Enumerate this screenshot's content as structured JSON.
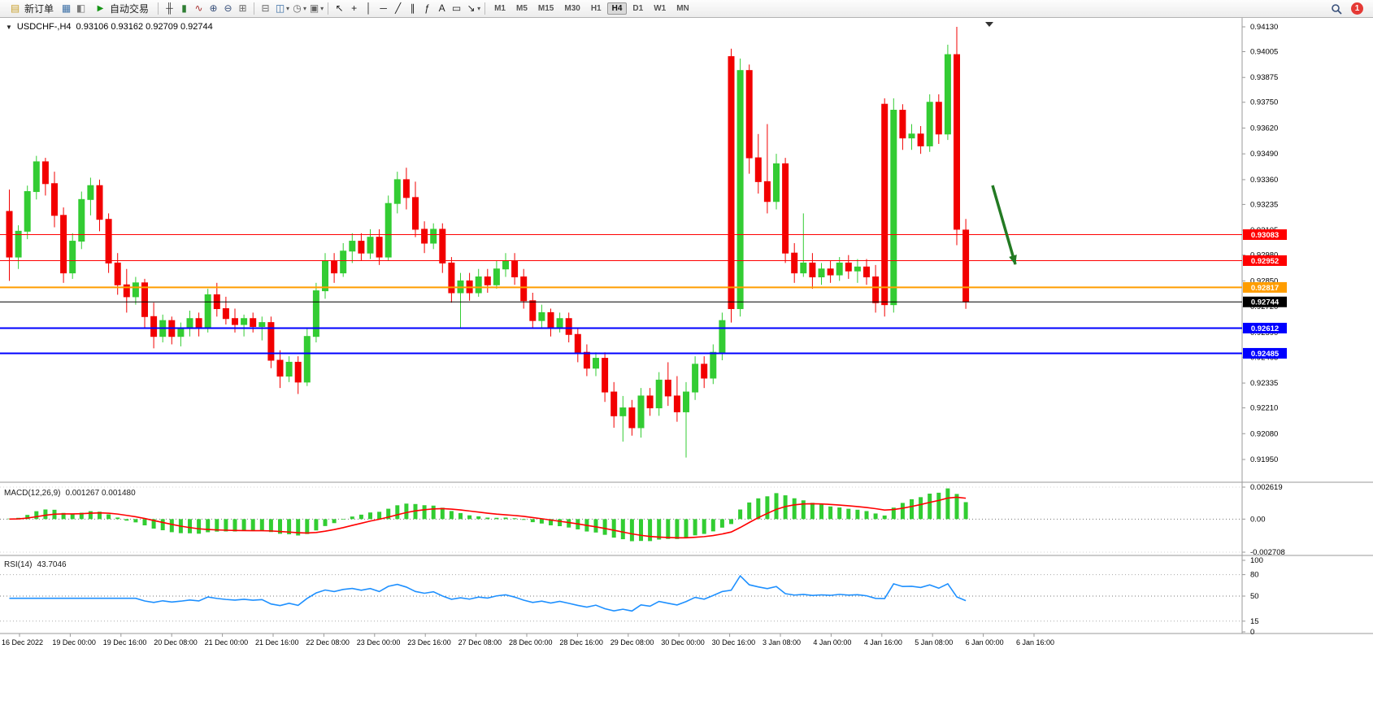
{
  "toolbar": {
    "new_order_label": "新订单",
    "auto_trading_label": "自动交易",
    "timeframes": [
      "M1",
      "M5",
      "M15",
      "M30",
      "H1",
      "H4",
      "D1",
      "W1",
      "MN"
    ],
    "active_timeframe": "H4",
    "notification_badge": "1",
    "icons": {
      "new_order": "▤",
      "charts": "▦",
      "market_watch": "◧",
      "auto_trading": "▶",
      "bar_chart": "╫",
      "candlestick": "▮",
      "line_chart": "∿",
      "zoom_in": "⊕",
      "zoom_out": "⊖",
      "tile_windows": "⊞",
      "arrange_windows": "⊟",
      "new_chart": "◫",
      "profiles": "◷",
      "chart_props": "▣",
      "cursor": "↖",
      "crosshair": "+",
      "vertical_line": "│",
      "horizontal_line": "─",
      "trendline": "╱",
      "channel": "∥",
      "fibonacci": "ƒ",
      "text": "A",
      "label": "▭",
      "arrows": "↘",
      "dropdown": "▾",
      "collapse": "▼"
    }
  },
  "chart_data": {
    "type": "candlestick",
    "title_symbol": "USDCHF-,H4",
    "title_ohlc": "0.93106 0.93162 0.92709 0.92744",
    "timeframe": "H4",
    "colors": {
      "up": "#33cc33",
      "down": "#f20000",
      "arrow": "#237a23",
      "macd_bar": "#32cd32",
      "macd_signal": "#ff0000",
      "rsi_line": "#1e90ff",
      "level_red": "#ff0000",
      "level_orange": "#ff9d00",
      "level_blue": "#0000ff",
      "level_black": "#000000"
    },
    "price_axis": [
      "0.94130",
      "0.94005",
      "0.93875",
      "0.93750",
      "0.93620",
      "0.93490",
      "0.93360",
      "0.93235",
      "0.93105",
      "0.92980",
      "0.92850",
      "0.92720",
      "0.92590",
      "0.92465",
      "0.92335",
      "0.92210",
      "0.92080",
      "0.91950"
    ],
    "levels": [
      {
        "price": 0.93083,
        "label": "0.93083",
        "color": "#ff0000",
        "width": 1
      },
      {
        "price": 0.92952,
        "label": "0.92952",
        "color": "#ff0000",
        "width": 1
      },
      {
        "price": 0.92817,
        "label": "0.92817",
        "color": "#ff9d00",
        "width": 2
      },
      {
        "price": 0.92744,
        "label": "0.92744",
        "color": "#000000",
        "width": 1
      },
      {
        "price": 0.92612,
        "label": "0.92612",
        "color": "#0000ff",
        "width": 2
      },
      {
        "price": 0.92485,
        "label": "0.92485",
        "color": "#0000ff",
        "width": 2
      }
    ],
    "candles": [
      [
        0.932,
        0.9331,
        0.9285,
        0.9297
      ],
      [
        0.9297,
        0.9313,
        0.9291,
        0.931
      ],
      [
        0.931,
        0.9333,
        0.9306,
        0.933
      ],
      [
        0.933,
        0.9348,
        0.9326,
        0.9345
      ],
      [
        0.9345,
        0.9347,
        0.9328,
        0.9334
      ],
      [
        0.9334,
        0.934,
        0.9312,
        0.9318
      ],
      [
        0.9318,
        0.9322,
        0.9284,
        0.9289
      ],
      [
        0.9289,
        0.9309,
        0.9286,
        0.9305
      ],
      [
        0.9305,
        0.933,
        0.9301,
        0.9326
      ],
      [
        0.9326,
        0.9337,
        0.9318,
        0.9333
      ],
      [
        0.9333,
        0.9336,
        0.931,
        0.9316
      ],
      [
        0.9316,
        0.9319,
        0.9289,
        0.9294
      ],
      [
        0.9294,
        0.9299,
        0.9278,
        0.9283
      ],
      [
        0.9283,
        0.9291,
        0.9269,
        0.9277
      ],
      [
        0.9277,
        0.9287,
        0.9273,
        0.9284
      ],
      [
        0.9284,
        0.9286,
        0.9261,
        0.9267
      ],
      [
        0.9267,
        0.9274,
        0.9251,
        0.9257
      ],
      [
        0.9257,
        0.9268,
        0.9254,
        0.9265
      ],
      [
        0.9265,
        0.9267,
        0.9253,
        0.9257
      ],
      [
        0.9257,
        0.9264,
        0.9252,
        0.9261
      ],
      [
        0.9261,
        0.927,
        0.9257,
        0.9266
      ],
      [
        0.9266,
        0.9269,
        0.9257,
        0.9261
      ],
      [
        0.9261,
        0.9281,
        0.9259,
        0.9278
      ],
      [
        0.9278,
        0.9284,
        0.9267,
        0.9271
      ],
      [
        0.9271,
        0.9277,
        0.9263,
        0.9266
      ],
      [
        0.9266,
        0.9271,
        0.9259,
        0.9263
      ],
      [
        0.9263,
        0.9268,
        0.9257,
        0.9266
      ],
      [
        0.9266,
        0.9269,
        0.9259,
        0.9262
      ],
      [
        0.9262,
        0.9267,
        0.9255,
        0.9264
      ],
      [
        0.9264,
        0.9267,
        0.9241,
        0.9245
      ],
      [
        0.9245,
        0.925,
        0.9231,
        0.9237
      ],
      [
        0.9237,
        0.9247,
        0.9234,
        0.9244
      ],
      [
        0.9244,
        0.9247,
        0.9228,
        0.9234
      ],
      [
        0.9234,
        0.9261,
        0.9232,
        0.9257
      ],
      [
        0.9257,
        0.9284,
        0.9254,
        0.928
      ],
      [
        0.928,
        0.9299,
        0.9276,
        0.9295
      ],
      [
        0.9295,
        0.9299,
        0.9284,
        0.9289
      ],
      [
        0.9289,
        0.9304,
        0.9287,
        0.93
      ],
      [
        0.93,
        0.9309,
        0.9294,
        0.9305
      ],
      [
        0.9305,
        0.9309,
        0.9295,
        0.9299
      ],
      [
        0.9299,
        0.9311,
        0.9296,
        0.9307
      ],
      [
        0.9307,
        0.9311,
        0.9293,
        0.9297
      ],
      [
        0.9297,
        0.9328,
        0.9295,
        0.9324
      ],
      [
        0.9324,
        0.934,
        0.9319,
        0.9336
      ],
      [
        0.9336,
        0.9342,
        0.9321,
        0.9327
      ],
      [
        0.9327,
        0.9335,
        0.9307,
        0.9311
      ],
      [
        0.9311,
        0.9315,
        0.9299,
        0.9304
      ],
      [
        0.9304,
        0.9314,
        0.9301,
        0.9311
      ],
      [
        0.9311,
        0.9314,
        0.9289,
        0.9294
      ],
      [
        0.9294,
        0.9297,
        0.9274,
        0.9279
      ],
      [
        0.9279,
        0.9289,
        0.9261,
        0.9285
      ],
      [
        0.9285,
        0.9289,
        0.9275,
        0.9279
      ],
      [
        0.9279,
        0.9291,
        0.9277,
        0.9287
      ],
      [
        0.9287,
        0.9291,
        0.9279,
        0.9283
      ],
      [
        0.9283,
        0.9295,
        0.9281,
        0.9291
      ],
      [
        0.9291,
        0.9299,
        0.9287,
        0.9295
      ],
      [
        0.9295,
        0.9299,
        0.9283,
        0.9287
      ],
      [
        0.9287,
        0.9291,
        0.9271,
        0.9275
      ],
      [
        0.9275,
        0.9279,
        0.9261,
        0.9265
      ],
      [
        0.9265,
        0.9273,
        0.9261,
        0.9269
      ],
      [
        0.9269,
        0.9271,
        0.9257,
        0.9261
      ],
      [
        0.9261,
        0.9269,
        0.9259,
        0.9266
      ],
      [
        0.9266,
        0.9269,
        0.9254,
        0.9258
      ],
      [
        0.9258,
        0.9261,
        0.9244,
        0.9249
      ],
      [
        0.9249,
        0.9253,
        0.9237,
        0.9241
      ],
      [
        0.9241,
        0.9249,
        0.9237,
        0.9246
      ],
      [
        0.9246,
        0.9249,
        0.9224,
        0.9229
      ],
      [
        0.9229,
        0.9234,
        0.9211,
        0.9217
      ],
      [
        0.9217,
        0.9227,
        0.9204,
        0.9221
      ],
      [
        0.9221,
        0.9225,
        0.9207,
        0.9211
      ],
      [
        0.9211,
        0.9231,
        0.9206,
        0.9227
      ],
      [
        0.9227,
        0.9231,
        0.9217,
        0.9221
      ],
      [
        0.9221,
        0.9239,
        0.9217,
        0.9235
      ],
      [
        0.9235,
        0.9244,
        0.9222,
        0.9227
      ],
      [
        0.9227,
        0.9237,
        0.9214,
        0.9219
      ],
      [
        0.9219,
        0.9234,
        0.9196,
        0.9229
      ],
      [
        0.9229,
        0.9247,
        0.9225,
        0.9243
      ],
      [
        0.9243,
        0.9247,
        0.9231,
        0.9236
      ],
      [
        0.9236,
        0.9253,
        0.9233,
        0.9249
      ],
      [
        0.9249,
        0.9269,
        0.9245,
        0.9265
      ],
      [
        0.9398,
        0.9402,
        0.9264,
        0.9271
      ],
      [
        0.9271,
        0.9397,
        0.9267,
        0.9391
      ],
      [
        0.9391,
        0.9394,
        0.9339,
        0.9347
      ],
      [
        0.9347,
        0.9359,
        0.9329,
        0.9335
      ],
      [
        0.9335,
        0.9364,
        0.9319,
        0.9325
      ],
      [
        0.9325,
        0.9349,
        0.9321,
        0.9344
      ],
      [
        0.9344,
        0.9347,
        0.9294,
        0.9299
      ],
      [
        0.9299,
        0.9304,
        0.9284,
        0.9289
      ],
      [
        0.9289,
        0.9319,
        0.9287,
        0.9294
      ],
      [
        0.9294,
        0.9299,
        0.9281,
        0.9287
      ],
      [
        0.9287,
        0.9294,
        0.9283,
        0.9291
      ],
      [
        0.9291,
        0.9295,
        0.9284,
        0.9288
      ],
      [
        0.9288,
        0.9297,
        0.9285,
        0.9294
      ],
      [
        0.9294,
        0.9298,
        0.9286,
        0.929
      ],
      [
        0.929,
        0.9296,
        0.9284,
        0.9292
      ],
      [
        0.9292,
        0.9296,
        0.9283,
        0.9287
      ],
      [
        0.9287,
        0.9293,
        0.9269,
        0.9274
      ],
      [
        0.9374,
        0.9377,
        0.9267,
        0.9273
      ],
      [
        0.9273,
        0.9377,
        0.9269,
        0.9371
      ],
      [
        0.9371,
        0.9374,
        0.9351,
        0.9357
      ],
      [
        0.9357,
        0.9364,
        0.9351,
        0.9359
      ],
      [
        0.9359,
        0.9363,
        0.9349,
        0.9353
      ],
      [
        0.9353,
        0.9379,
        0.935,
        0.9375
      ],
      [
        0.9375,
        0.9379,
        0.9354,
        0.9359
      ],
      [
        0.9359,
        0.9404,
        0.9356,
        0.9399
      ],
      [
        0.9399,
        0.9413,
        0.9303,
        0.9311
      ],
      [
        0.93106,
        0.93162,
        0.92709,
        0.92744
      ]
    ],
    "dates": [
      "16 Dec 2022",
      "19 Dec 00:00",
      "19 Dec 16:00",
      "20 Dec 08:00",
      "21 Dec 00:00",
      "21 Dec 16:00",
      "22 Dec 08:00",
      "23 Dec 00:00",
      "23 Dec 16:00",
      "27 Dec 08:00",
      "28 Dec 00:00",
      "28 Dec 16:00",
      "29 Dec 08:00",
      "30 Dec 00:00",
      "30 Dec 16:00",
      "3 Jan 08:00",
      "4 Jan 00:00",
      "4 Jan 16:00",
      "5 Jan 08:00",
      "6 Jan 00:00",
      "6 Jan 16:00"
    ],
    "macd": {
      "label": "MACD(12,26,9)",
      "values": "0.001267 0.001480",
      "fast": 12,
      "slow": 26,
      "signal": 9,
      "axis": [
        "0.002619",
        "0.00",
        "-0.002708"
      ]
    },
    "rsi": {
      "label": "RSI(14)",
      "value": "43.7046",
      "period": 14,
      "axis": [
        "100",
        "80",
        "50",
        "15",
        "0"
      ]
    }
  }
}
